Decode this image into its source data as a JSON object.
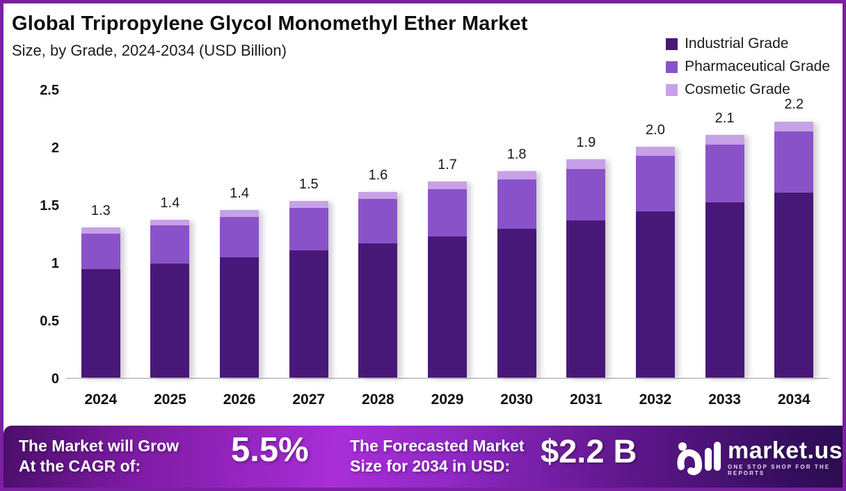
{
  "header": {
    "title": "Global Tripropylene Glycol Monomethyl Ether Market",
    "subtitle": "Size, by Grade, 2024-2034 (USD Billion)"
  },
  "legend": [
    {
      "label": "Industrial Grade",
      "color": "#481879"
    },
    {
      "label": "Pharmaceutical Grade",
      "color": "#8a52c8"
    },
    {
      "label": "Cosmetic Grade",
      "color": "#c7a1e8"
    }
  ],
  "chart_data": {
    "type": "bar",
    "stacked": true,
    "title": "Global Tripropylene Glycol Monomethyl Ether Market",
    "subtitle": "Size, by Grade, 2024-2034 (USD Billion)",
    "unit": "USD Billion",
    "categories": [
      "2024",
      "2025",
      "2026",
      "2027",
      "2028",
      "2029",
      "2030",
      "2031",
      "2032",
      "2033",
      "2034"
    ],
    "series": [
      {
        "name": "Industrial Grade",
        "color": "#481879",
        "values": [
          0.94,
          0.99,
          1.04,
          1.1,
          1.16,
          1.22,
          1.29,
          1.36,
          1.44,
          1.52,
          1.6
        ]
      },
      {
        "name": "Pharmaceutical Grade",
        "color": "#8a52c8",
        "values": [
          0.31,
          0.33,
          0.35,
          0.37,
          0.39,
          0.41,
          0.43,
          0.45,
          0.48,
          0.5,
          0.53
        ]
      },
      {
        "name": "Cosmetic Grade",
        "color": "#c7a1e8",
        "values": [
          0.05,
          0.05,
          0.06,
          0.06,
          0.06,
          0.07,
          0.07,
          0.08,
          0.08,
          0.08,
          0.09
        ]
      }
    ],
    "totals": [
      1.3,
      1.4,
      1.4,
      1.5,
      1.6,
      1.7,
      1.8,
      1.9,
      2.0,
      2.1,
      2.2
    ],
    "total_labels": [
      "1.3",
      "1.4",
      "1.4",
      "1.5",
      "1.6",
      "1.7",
      "1.8",
      "1.9",
      "2.0",
      "2.1",
      "2.2"
    ],
    "ylim": [
      0,
      2.5
    ],
    "yticks": [
      0,
      0.5,
      1,
      1.5,
      2,
      2.5
    ],
    "ytick_labels": [
      "0",
      "0.5",
      "1",
      "1.5",
      "2",
      "2.5"
    ],
    "legend_position": "top-right",
    "grid": false,
    "axis_color": "#c9c9c9"
  },
  "banner": {
    "cagr_label_line1": "The Market will Grow",
    "cagr_label_line2": "At the CAGR of:",
    "cagr_value": "5.5%",
    "forecast_label_line1": "The Forecasted Market",
    "forecast_label_line2": "Size for 2034 in USD:",
    "forecast_value": "$2.2 B",
    "brand_name": "market.us",
    "brand_tagline": "ONE STOP SHOP FOR THE REPORTS"
  }
}
